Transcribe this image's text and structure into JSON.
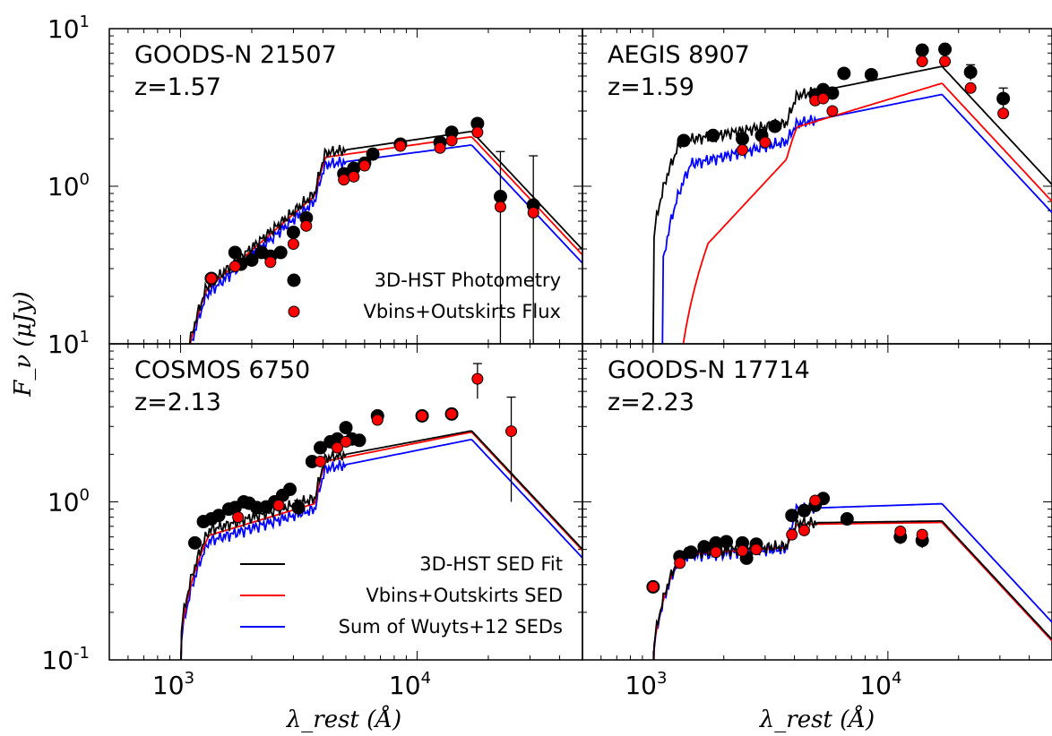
{
  "figure": {
    "ylabel": "F_ν (μJy)",
    "xlabel": "λ_rest (Å)"
  },
  "legend_points": [
    "3D-HST Photometry",
    "Vbins+Outskirts Flux"
  ],
  "legend_lines": [
    "3D-HST SED Fit",
    "Vbins+Outskirts SED",
    "Sum of Wuyts+12 SEDs"
  ],
  "colors": {
    "photometry": "#000000",
    "vbins_flux": "#ff0000",
    "sed_3dhst": "#000000",
    "sed_vbins": "#ff0000",
    "sed_wuyts": "#0000ff"
  },
  "chart_data": [
    {
      "type": "scatter",
      "title": "GOODS-N 21507",
      "subtitle": "z=1.57",
      "xscale": "log",
      "yscale": "log",
      "xlim": [
        500,
        50000
      ],
      "ylim": [
        0.1,
        10
      ],
      "xticks": [
        "10^3",
        "10^4"
      ],
      "yticks": [
        "10^1",
        "10^0"
      ],
      "legend_placement": "lower-right",
      "series": [
        {
          "name": "3D-HST Photometry",
          "x": [
            1350,
            1700,
            1800,
            2000,
            2200,
            2400,
            2650,
            3000,
            3400,
            4900,
            5400,
            6000,
            6500,
            8500,
            12500,
            14000,
            18000,
            22500,
            31000
          ],
          "y": [
            0.26,
            0.38,
            0.32,
            0.34,
            0.38,
            0.36,
            0.38,
            0.51,
            0.63,
            1.2,
            1.3,
            1.4,
            1.6,
            1.85,
            1.9,
            2.2,
            2.5,
            0.86,
            0.76
          ],
          "err": [
            0,
            0,
            0,
            0,
            0,
            0,
            0,
            0,
            0,
            0,
            0,
            0,
            0,
            0,
            0,
            0,
            0,
            0.8,
            0.8
          ]
        },
        {
          "name": "Vbins+Outskirts Flux",
          "x": [
            1350,
            1700,
            2400,
            3000,
            3400,
            4900,
            5400,
            6000,
            8500,
            12500,
            14000,
            18000,
            22500,
            31000
          ],
          "y": [
            0.26,
            0.31,
            0.33,
            0.43,
            0.56,
            1.1,
            1.15,
            1.35,
            1.8,
            1.75,
            1.95,
            2.2,
            0.74,
            0.68
          ]
        }
      ]
    },
    {
      "type": "scatter",
      "title": "AEGIS 8907",
      "subtitle": "z=1.59",
      "xscale": "log",
      "yscale": "log",
      "xlim": [
        500,
        50000
      ],
      "ylim": [
        0.1,
        10
      ],
      "xticks": [
        "10^3",
        "10^4"
      ],
      "yticks": [],
      "series": [
        {
          "name": "3D-HST Photometry",
          "x": [
            1350,
            1800,
            2400,
            2900,
            3300,
            4900,
            5300,
            5800,
            6500,
            8500,
            14000,
            17500,
            22500,
            31000
          ],
          "y": [
            1.95,
            2.1,
            2.0,
            2.1,
            2.4,
            3.8,
            4.1,
            3.9,
            5.2,
            5.1,
            7.3,
            7.4,
            5.3,
            3.6
          ],
          "err": [
            0,
            0,
            0,
            0,
            0,
            0,
            0,
            0,
            0,
            0,
            0,
            0,
            0.6,
            0.6
          ]
        },
        {
          "name": "Vbins+Outskirts Flux",
          "x": [
            2400,
            3000,
            4900,
            5300,
            5800,
            14000,
            17500,
            22500,
            31000
          ],
          "y": [
            1.7,
            1.9,
            3.5,
            3.6,
            3.0,
            6.2,
            6.2,
            4.2,
            2.9
          ]
        }
      ]
    },
    {
      "type": "scatter",
      "title": "COSMOS 6750",
      "subtitle": "z=2.13",
      "xscale": "log",
      "yscale": "log",
      "xlim": [
        500,
        50000
      ],
      "ylim": [
        0.1,
        10
      ],
      "xticks": [
        "10^3",
        "10^4"
      ],
      "yticks": [
        "10^0",
        "10^-1"
      ],
      "legend_placement": "lower-right",
      "series": [
        {
          "name": "3D-HST Photometry",
          "x": [
            1150,
            1250,
            1350,
            1450,
            1600,
            1700,
            1850,
            1950,
            2100,
            2300,
            2500,
            2700,
            2900,
            3150,
            3600,
            3900,
            4300,
            4600,
            5000,
            5300,
            5700,
            6800,
            10500,
            14000
          ],
          "y": [
            0.55,
            0.75,
            0.78,
            0.82,
            0.9,
            0.92,
            1.0,
            0.98,
            0.92,
            0.93,
            1.0,
            1.1,
            1.2,
            0.92,
            1.8,
            2.2,
            2.4,
            2.5,
            2.95,
            2.5,
            2.45,
            3.5,
            3.5,
            3.6
          ],
          "err": [
            0,
            0,
            0,
            0,
            0,
            0,
            0,
            0,
            0,
            0,
            0,
            0,
            0,
            0.1,
            0,
            0,
            0,
            0,
            0,
            0,
            0,
            0,
            0,
            0
          ]
        },
        {
          "name": "Vbins+Outskirts Flux",
          "x": [
            1750,
            2600,
            3900,
            4600,
            5000,
            6800,
            10500,
            14000,
            18000,
            25000
          ],
          "y": [
            0.8,
            0.95,
            1.8,
            2.2,
            2.4,
            3.3,
            3.5,
            3.6,
            6.0,
            2.8
          ],
          "err": [
            0,
            0,
            0,
            0,
            0,
            0,
            0,
            0,
            1.5,
            1.8
          ]
        }
      ]
    },
    {
      "type": "scatter",
      "title": "GOODS-N 17714",
      "subtitle": "z=2.23",
      "xscale": "log",
      "yscale": "log",
      "xlim": [
        500,
        50000
      ],
      "ylim": [
        0.1,
        10
      ],
      "xticks": [
        "10^3",
        "10^4"
      ],
      "yticks": [],
      "series": [
        {
          "name": "3D-HST Photometry",
          "x": [
            1000,
            1300,
            1450,
            1650,
            1850,
            2050,
            2400,
            2500,
            2750,
            3900,
            4400,
            4900,
            5300,
            6700,
            11300,
            14000
          ],
          "y": [
            0.29,
            0.45,
            0.48,
            0.52,
            0.55,
            0.56,
            0.55,
            0.44,
            0.54,
            0.82,
            0.88,
            0.95,
            1.05,
            0.78,
            0.6,
            0.57
          ],
          "err": [
            0,
            0,
            0,
            0,
            0,
            0,
            0,
            0,
            0,
            0,
            0,
            0,
            0,
            0,
            0.06,
            0.06
          ]
        },
        {
          "name": "Vbins+Outskirts Flux",
          "x": [
            1000,
            1300,
            1850,
            2400,
            2750,
            3900,
            4400,
            4900,
            11300,
            14000
          ],
          "y": [
            0.29,
            0.41,
            0.48,
            0.49,
            0.5,
            0.62,
            0.66,
            1.02,
            0.65,
            0.62
          ]
        }
      ]
    }
  ]
}
